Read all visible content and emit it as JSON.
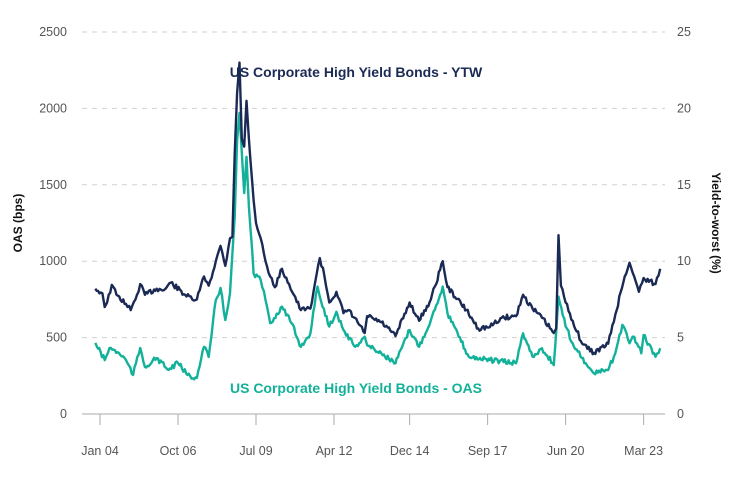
{
  "chart_data": {
    "type": "line",
    "title": "",
    "xlabel": "",
    "ylabel": "OAS (bps)",
    "y2label": "Yield-to-worst (%)",
    "ylim": [
      0,
      2500
    ],
    "y2lim": [
      0,
      25
    ],
    "yticks": [
      "0",
      "500",
      "1000",
      "1500",
      "2000",
      "2500"
    ],
    "y2ticks": [
      "0",
      "5",
      "10",
      "15",
      "20",
      "25"
    ],
    "xticks": [
      "Jan 04",
      "Oct 06",
      "Jul 09",
      "Apr 12",
      "Dec 14",
      "Sep 17",
      "Jun 20",
      "Mar 23"
    ],
    "xtick_dates": [
      "2004-01",
      "2006-10",
      "2009-07",
      "2012-04",
      "2014-12",
      "2017-09",
      "2020-06",
      "2023-03"
    ],
    "grid": "horizontal dashed",
    "colors": {
      "ytw": "#1b2a55",
      "oas": "#13b19a",
      "grid": "#d0d0d0",
      "axis": "#aaaaaa"
    },
    "series": [
      {
        "name": "US Corporate High Yield Bonds - YTW",
        "axis": "right",
        "unit": "%",
        "points": [
          [
            "2003-11",
            8.2
          ],
          [
            "2004-02",
            7.9
          ],
          [
            "2004-03",
            7.0
          ],
          [
            "2004-04",
            7.3
          ],
          [
            "2004-06",
            8.45
          ],
          [
            "2004-08",
            7.8
          ],
          [
            "2004-12",
            7.2
          ],
          [
            "2005-02",
            6.8
          ],
          [
            "2005-04",
            7.5
          ],
          [
            "2005-06",
            8.5
          ],
          [
            "2005-08",
            7.8
          ],
          [
            "2006-01",
            8.2
          ],
          [
            "2006-04",
            8.1
          ],
          [
            "2006-07",
            8.6
          ],
          [
            "2007-01",
            7.8
          ],
          [
            "2007-04",
            7.5
          ],
          [
            "2007-06",
            7.5
          ],
          [
            "2007-09",
            9.0
          ],
          [
            "2007-11",
            8.4
          ],
          [
            "2008-02",
            10.0
          ],
          [
            "2008-04",
            11.0
          ],
          [
            "2008-06",
            9.7
          ],
          [
            "2008-08",
            11.5
          ],
          [
            "2008-09",
            11.6
          ],
          [
            "2008-10",
            17.0
          ],
          [
            "2008-11",
            21.0
          ],
          [
            "2008-12",
            23.0
          ],
          [
            "2009-01",
            18.0
          ],
          [
            "2009-02",
            17.5
          ],
          [
            "2009-03",
            20.5
          ],
          [
            "2009-04",
            18.0
          ],
          [
            "2009-06",
            14.0
          ],
          [
            "2009-07",
            12.5
          ],
          [
            "2009-09",
            11.5
          ],
          [
            "2009-11",
            10.0
          ],
          [
            "2010-01",
            9.0
          ],
          [
            "2010-03",
            8.3
          ],
          [
            "2010-06",
            9.5
          ],
          [
            "2010-09",
            8.5
          ],
          [
            "2010-11",
            7.8
          ],
          [
            "2011-02",
            6.8
          ],
          [
            "2011-06",
            6.9
          ],
          [
            "2011-08",
            8.6
          ],
          [
            "2011-10",
            10.2
          ],
          [
            "2011-12",
            9.0
          ],
          [
            "2012-02",
            7.3
          ],
          [
            "2012-05",
            8.0
          ],
          [
            "2012-08",
            6.6
          ],
          [
            "2012-10",
            6.8
          ],
          [
            "2013-02",
            6.0
          ],
          [
            "2013-05",
            5.3
          ],
          [
            "2013-06",
            6.4
          ],
          [
            "2013-12",
            6.0
          ],
          [
            "2014-06",
            5.1
          ],
          [
            "2014-12",
            7.3
          ],
          [
            "2015-04",
            6.1
          ],
          [
            "2015-09",
            7.5
          ],
          [
            "2016-02",
            10.0
          ],
          [
            "2016-04",
            8.3
          ],
          [
            "2016-12",
            6.8
          ],
          [
            "2017-05",
            5.6
          ],
          [
            "2017-10",
            5.7
          ],
          [
            "2018-03",
            6.3
          ],
          [
            "2018-09",
            6.4
          ],
          [
            "2018-12",
            7.8
          ],
          [
            "2019-04",
            6.9
          ],
          [
            "2019-08",
            6.3
          ],
          [
            "2020-01",
            5.3
          ],
          [
            "2020-02",
            5.6
          ],
          [
            "2020-03",
            11.7
          ],
          [
            "2020-04",
            8.4
          ],
          [
            "2020-06",
            7.3
          ],
          [
            "2020-09",
            6.1
          ],
          [
            "2021-01",
            4.6
          ],
          [
            "2021-06",
            4.0
          ],
          [
            "2021-12",
            4.6
          ],
          [
            "2022-03",
            6.5
          ],
          [
            "2022-07",
            9.0
          ],
          [
            "2022-09",
            9.9
          ],
          [
            "2022-11",
            9.0
          ],
          [
            "2023-01",
            8.0
          ],
          [
            "2023-03",
            8.9
          ],
          [
            "2023-08",
            8.5
          ],
          [
            "2023-10",
            9.5
          ]
        ]
      },
      {
        "name": "US Corporate High Yield Bonds - OAS",
        "axis": "left",
        "unit": "bps",
        "points": [
          [
            "2003-11",
            465
          ],
          [
            "2004-03",
            353
          ],
          [
            "2004-05",
            432
          ],
          [
            "2004-09",
            399
          ],
          [
            "2004-12",
            353
          ],
          [
            "2005-03",
            255
          ],
          [
            "2005-06",
            432
          ],
          [
            "2005-08",
            308
          ],
          [
            "2006-01",
            366
          ],
          [
            "2006-06",
            288
          ],
          [
            "2006-10",
            334
          ],
          [
            "2007-02",
            255
          ],
          [
            "2007-06",
            236
          ],
          [
            "2007-09",
            440
          ],
          [
            "2007-11",
            373
          ],
          [
            "2008-02",
            746
          ],
          [
            "2008-04",
            825
          ],
          [
            "2008-06",
            615
          ],
          [
            "2008-08",
            792
          ],
          [
            "2008-10",
            1290
          ],
          [
            "2008-11",
            1790
          ],
          [
            "2008-12",
            1970
          ],
          [
            "2009-02",
            1446
          ],
          [
            "2009-03",
            1683
          ],
          [
            "2009-04",
            1356
          ],
          [
            "2009-06",
            920
          ],
          [
            "2009-09",
            877
          ],
          [
            "2009-11",
            746
          ],
          [
            "2010-01",
            594
          ],
          [
            "2010-06",
            702
          ],
          [
            "2010-10",
            594
          ],
          [
            "2011-02",
            440
          ],
          [
            "2011-06",
            528
          ],
          [
            "2011-09",
            834
          ],
          [
            "2011-10",
            768
          ],
          [
            "2012-02",
            572
          ],
          [
            "2012-05",
            669
          ],
          [
            "2012-08",
            550
          ],
          [
            "2013-01",
            440
          ],
          [
            "2013-05",
            506
          ],
          [
            "2013-06",
            451
          ],
          [
            "2013-12",
            397
          ],
          [
            "2014-06",
            332
          ],
          [
            "2014-12",
            550
          ],
          [
            "2015-04",
            440
          ],
          [
            "2015-09",
            615
          ],
          [
            "2016-02",
            834
          ],
          [
            "2016-04",
            659
          ],
          [
            "2017-01",
            375
          ],
          [
            "2017-10",
            353
          ],
          [
            "2018-09",
            332
          ],
          [
            "2018-12",
            528
          ],
          [
            "2019-04",
            375
          ],
          [
            "2019-08",
            430
          ],
          [
            "2020-01",
            320
          ],
          [
            "2020-03",
            768
          ],
          [
            "2020-06",
            572
          ],
          [
            "2020-09",
            463
          ],
          [
            "2021-03",
            320
          ],
          [
            "2021-06",
            266
          ],
          [
            "2021-12",
            288
          ],
          [
            "2022-03",
            397
          ],
          [
            "2022-06",
            583
          ],
          [
            "2022-09",
            463
          ],
          [
            "2022-11",
            506
          ],
          [
            "2023-02",
            397
          ],
          [
            "2023-03",
            517
          ],
          [
            "2023-08",
            375
          ],
          [
            "2023-10",
            430
          ]
        ]
      }
    ]
  }
}
